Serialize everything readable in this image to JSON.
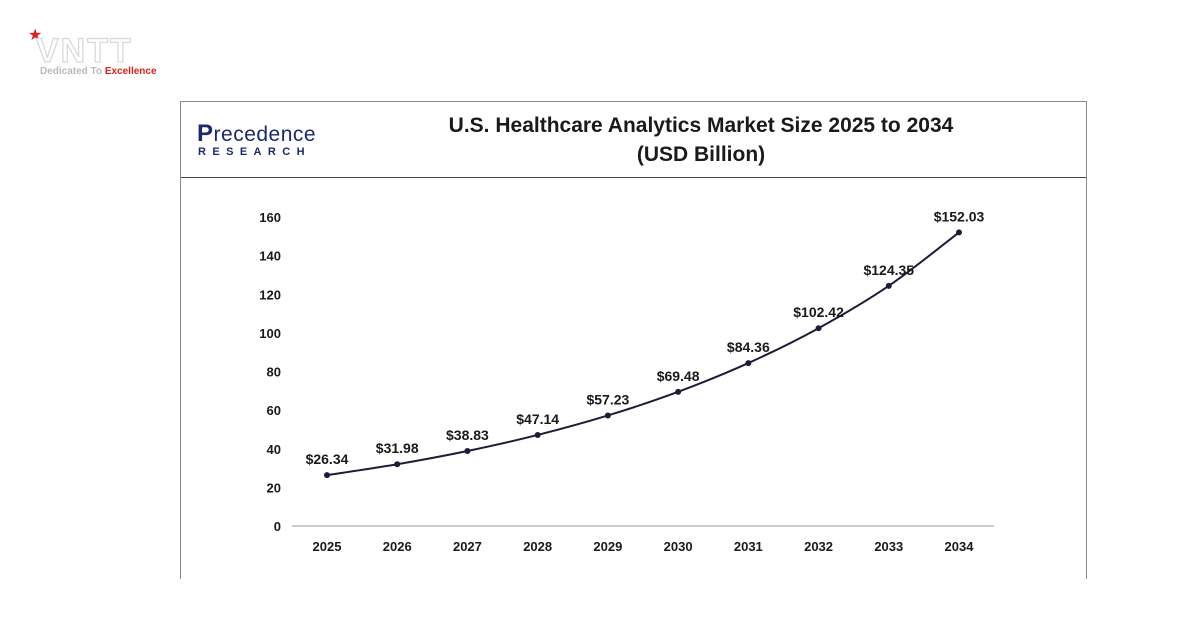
{
  "brand": {
    "name": "VNTT",
    "tagline_part1": "Dedicated To ",
    "tagline_part2": "Excellence",
    "star_color": "#e0201b"
  },
  "publisher": {
    "name_initial": "P",
    "name_rest": "recedence",
    "subtitle": "RESEARCH",
    "color": "#1b2a6b"
  },
  "chart_data": {
    "type": "line",
    "title_line1": "U.S. Healthcare Analytics Market Size 2025 to 2034",
    "title_line2": "(USD Billion)",
    "categories": [
      "2025",
      "2026",
      "2027",
      "2028",
      "2029",
      "2030",
      "2031",
      "2032",
      "2033",
      "2034"
    ],
    "values": [
      26.34,
      31.98,
      38.83,
      47.14,
      57.23,
      69.48,
      84.36,
      102.42,
      124.35,
      152.03
    ],
    "value_labels": [
      "$26.34",
      "$31.98",
      "$38.83",
      "$47.14",
      "$57.23",
      "$69.48",
      "$84.36",
      "$102.42",
      "$124.35",
      "$152.03"
    ],
    "yticks": [
      0,
      20,
      40,
      60,
      80,
      100,
      120,
      140,
      160
    ],
    "ylim": [
      0,
      160
    ],
    "xlabel": "",
    "ylabel": "",
    "grid": false,
    "line_color": "#1c1c3a"
  }
}
